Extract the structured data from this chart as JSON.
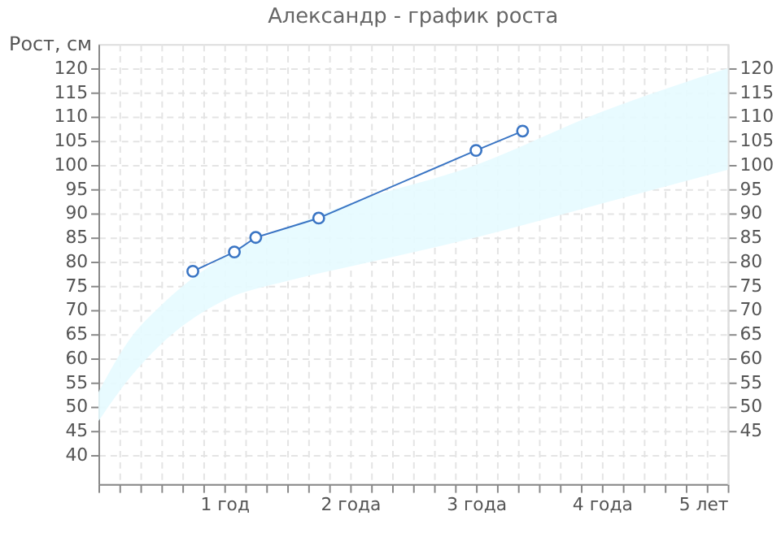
{
  "chart_data": {
    "type": "line",
    "title": "Александр  - график роста",
    "ylabel": "Рост, см",
    "xlim": [
      0,
      5
    ],
    "ylim": [
      34,
      125
    ],
    "y2lim": [
      34,
      125
    ],
    "xticks": [
      {
        "value": 0,
        "label": null
      },
      {
        "value": 0.1667,
        "label": null
      },
      {
        "value": 0.3333,
        "label": null
      },
      {
        "value": 0.5,
        "label": null
      },
      {
        "value": 0.6667,
        "label": null
      },
      {
        "value": 0.8333,
        "label": null
      },
      {
        "value": 1,
        "label": "1 год"
      },
      {
        "value": 1.1667,
        "label": null
      },
      {
        "value": 1.3333,
        "label": null
      },
      {
        "value": 1.5,
        "label": null
      },
      {
        "value": 1.6667,
        "label": null
      },
      {
        "value": 1.8333,
        "label": null
      },
      {
        "value": 2,
        "label": "2 года"
      },
      {
        "value": 2.1667,
        "label": null
      },
      {
        "value": 2.3333,
        "label": null
      },
      {
        "value": 2.5,
        "label": null
      },
      {
        "value": 2.6667,
        "label": null
      },
      {
        "value": 2.8333,
        "label": null
      },
      {
        "value": 3,
        "label": "3 года"
      },
      {
        "value": 3.1667,
        "label": null
      },
      {
        "value": 3.3333,
        "label": null
      },
      {
        "value": 3.5,
        "label": null
      },
      {
        "value": 3.6667,
        "label": null
      },
      {
        "value": 3.8333,
        "label": null
      },
      {
        "value": 4,
        "label": "4 года"
      },
      {
        "value": 4.1667,
        "label": null
      },
      {
        "value": 4.3333,
        "label": null
      },
      {
        "value": 4.5,
        "label": null
      },
      {
        "value": 4.6667,
        "label": null
      },
      {
        "value": 4.8333,
        "label": null
      },
      {
        "value": 5,
        "label": "5 лет"
      }
    ],
    "yticks": [
      40,
      45,
      50,
      55,
      60,
      65,
      70,
      75,
      80,
      85,
      90,
      95,
      100,
      105,
      110,
      115,
      120
    ],
    "y2ticks": [
      45,
      50,
      55,
      60,
      65,
      70,
      75,
      80,
      85,
      90,
      95,
      100,
      105,
      110,
      115,
      120
    ],
    "grid": true,
    "marker": "circle",
    "line_style": "solid",
    "series": [
      {
        "type": "area",
        "color": "#e6fbff",
        "x": [
          0,
          0.25,
          0.5,
          1,
          1.5,
          2,
          3,
          4,
          5
        ],
        "values": [
          null,
          null,
          null,
          null,
          null,
          null,
          null,
          null,
          null
        ],
        "lower": [
          47,
          56,
          63,
          72,
          76,
          79,
          85,
          92,
          99
        ],
        "upper": [
          53,
          64,
          71,
          81,
          87,
          92,
          100,
          111,
          120
        ]
      },
      {
        "color": "#3a75c4",
        "x": [
          0.75,
          1.08,
          1.25,
          1.75,
          3.0,
          3.37
        ],
        "values": [
          78,
          82,
          85,
          89,
          103,
          107
        ]
      }
    ]
  }
}
